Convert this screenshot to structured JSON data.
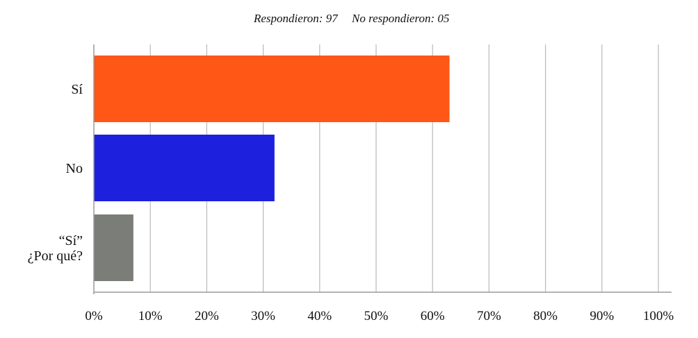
{
  "header": {
    "responded": "Respondieron: 97",
    "not_responded": "No respondieron: 05"
  },
  "chart_data": {
    "type": "bar",
    "orientation": "horizontal",
    "categories": [
      [
        "Sí"
      ],
      [
        "No"
      ],
      [
        "“Sí”",
        "¿Por qué?"
      ]
    ],
    "values": [
      63,
      32,
      7
    ],
    "colors": [
      "#fe5716",
      "#1d20dd",
      "#7b7d79"
    ],
    "xlim": [
      0,
      100
    ],
    "xticks": [
      "0%",
      "10%",
      "20%",
      "30%",
      "40%",
      "50%",
      "60%",
      "70%",
      "80%",
      "90%",
      "100%"
    ],
    "grid": "vertical",
    "legend": "none"
  }
}
